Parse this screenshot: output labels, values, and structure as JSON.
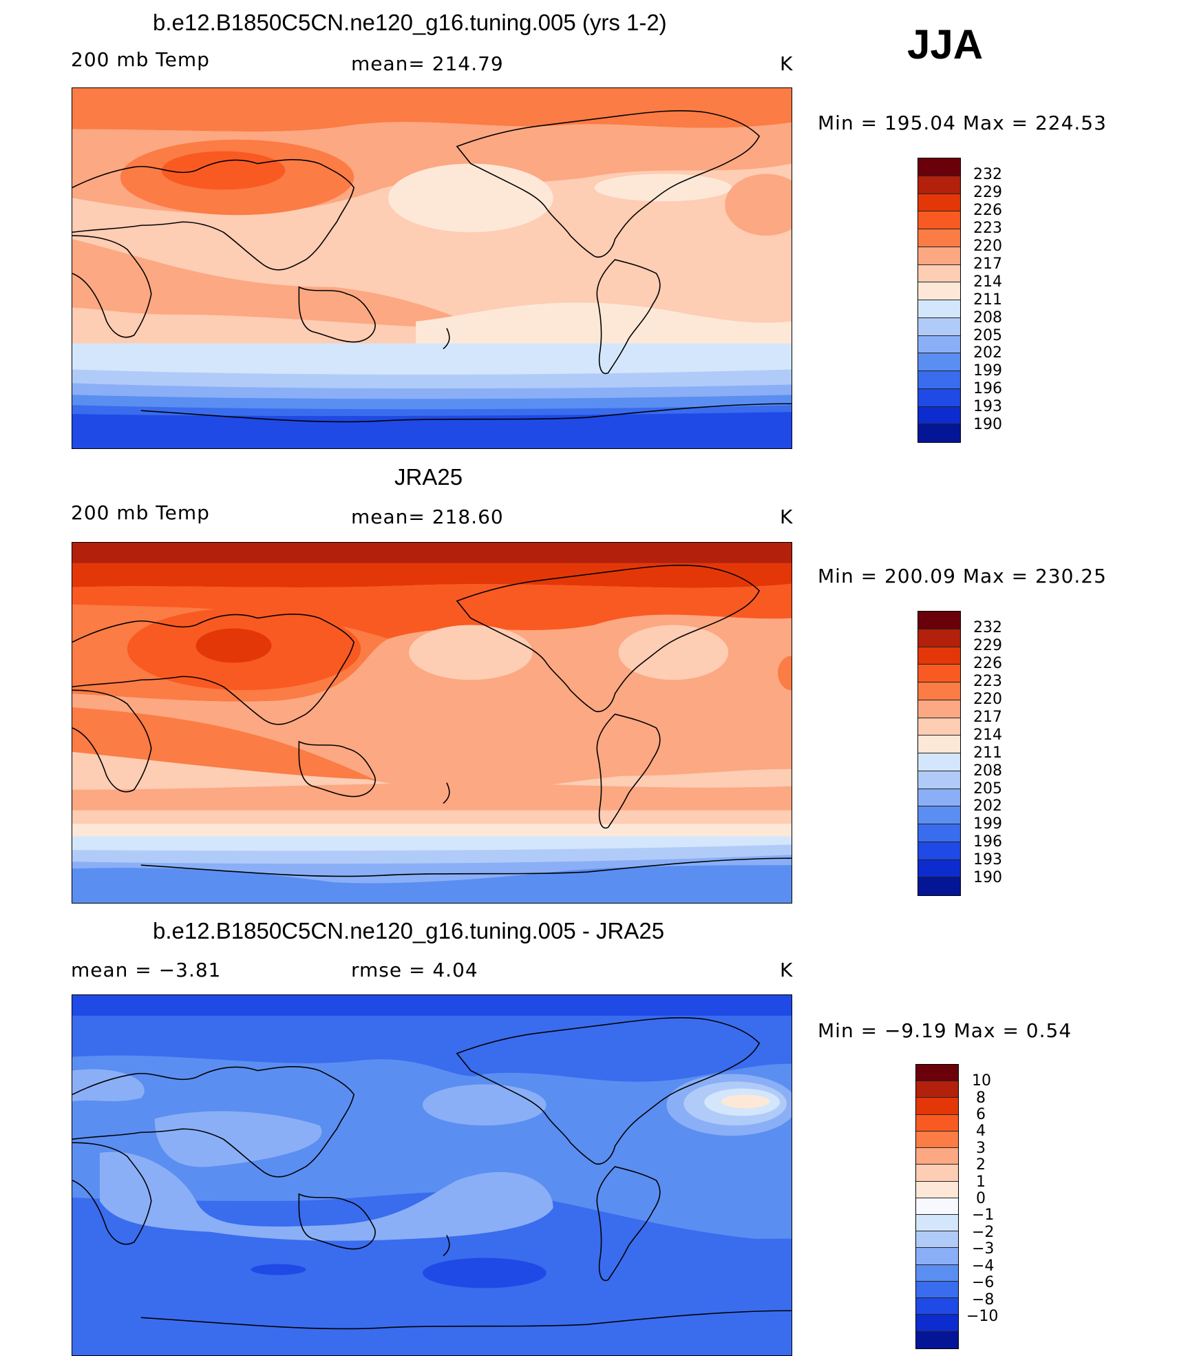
{
  "season": "JJA",
  "units": "K",
  "colors": {
    "abs_scale": [
      "#6a000a",
      "#b3200c",
      "#e43708",
      "#f95a22",
      "#fb7c45",
      "#fca882",
      "#fdcdb4",
      "#fde8d8",
      "#d4e6fb",
      "#b1cbf9",
      "#8aaff6",
      "#5b8ef1",
      "#3a6cee",
      "#1f4ae6",
      "#0d2ccf",
      "#041596"
    ],
    "diff_scale": [
      "#6a000a",
      "#b3200c",
      "#e43708",
      "#f95a22",
      "#fb7c45",
      "#fca882",
      "#fdcdb4",
      "#fde8d8",
      "#f8f8ff",
      "#d4e6fb",
      "#b1cbf9",
      "#8aaff6",
      "#5b8ef1",
      "#3a6cee",
      "#1f4ae6",
      "#0d2ccf",
      "#041596"
    ]
  },
  "panels": [
    {
      "title": "b.e12.B1850C5CN.ne120_g16.tuning.005 (yrs 1-2)",
      "left_label": "200 mb Temp",
      "center_label": "mean= 214.79",
      "right_label": "K",
      "min_max": "Min  =  195.04  Max  =  224.53",
      "colorbar_labels": [
        "232",
        "229",
        "226",
        "223",
        "220",
        "217",
        "214",
        "211",
        "208",
        "205",
        "202",
        "199",
        "196",
        "193",
        "190"
      ]
    },
    {
      "title": "JRA25",
      "left_label": "200 mb Temp",
      "center_label": "mean= 218.60",
      "right_label": "K",
      "min_max": "Min  =  200.09  Max  =  230.25",
      "colorbar_labels": [
        "232",
        "229",
        "226",
        "223",
        "220",
        "217",
        "214",
        "211",
        "208",
        "205",
        "202",
        "199",
        "196",
        "193",
        "190"
      ]
    },
    {
      "title": "b.e12.B1850C5CN.ne120_g16.tuning.005 - JRA25",
      "left_label": "mean  =    −3.81",
      "center_label": "rmse  =     4.04",
      "right_label": "K",
      "min_max": "Min  =    −9.19  Max  =     0.54",
      "colorbar_labels": [
        "10",
        "8",
        "6",
        "4",
        "3",
        "2",
        "1",
        "0",
        "−1",
        "−2",
        "−3",
        "−4",
        "−6",
        "−8",
        "−10"
      ]
    }
  ]
}
